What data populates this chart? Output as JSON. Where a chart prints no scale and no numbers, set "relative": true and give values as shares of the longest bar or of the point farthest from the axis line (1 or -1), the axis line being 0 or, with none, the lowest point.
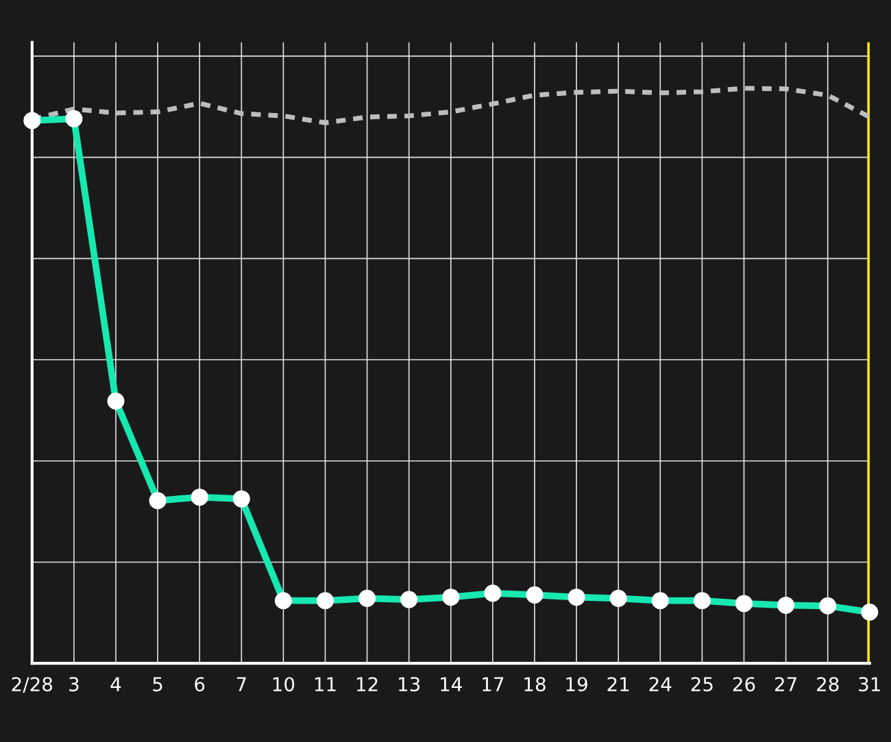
{
  "chart_data": {
    "type": "line",
    "relative": true,
    "grid": true,
    "legend": false,
    "categories": [
      "2/28",
      "3",
      "4",
      "5",
      "6",
      "7",
      "10",
      "11",
      "12",
      "13",
      "14",
      "17",
      "18",
      "19",
      "21",
      "24",
      "25",
      "26",
      "27",
      "28",
      "31"
    ],
    "series": [
      {
        "color": "#bdbdbd",
        "line_style": "dashed",
        "marker": "none",
        "values": [
          0.946,
          0.964,
          0.957,
          0.959,
          0.974,
          0.956,
          0.952,
          0.94,
          0.95,
          0.952,
          0.959,
          0.973,
          0.988,
          0.993,
          0.995,
          0.992,
          0.994,
          1.0,
          0.999,
          0.988,
          0.95
        ]
      },
      {
        "color": "#17e8b0",
        "line_style": "solid",
        "marker": "circle",
        "values": [
          0.944,
          0.947,
          0.456,
          0.283,
          0.289,
          0.286,
          0.109,
          0.109,
          0.113,
          0.111,
          0.115,
          0.122,
          0.119,
          0.115,
          0.113,
          0.109,
          0.109,
          0.104,
          0.101,
          0.1,
          0.089
        ]
      }
    ],
    "ref_lines": [
      {
        "axis": "x",
        "value": "31",
        "color": "#ffe600",
        "line_style": "solid"
      }
    ]
  }
}
